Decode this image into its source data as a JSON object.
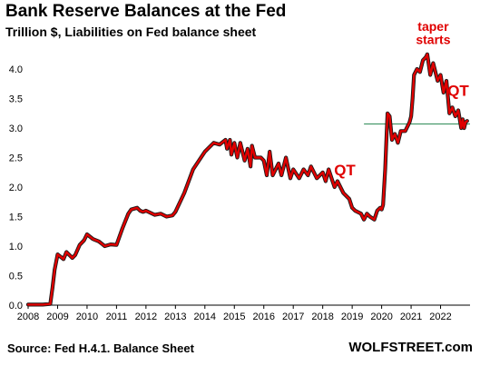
{
  "chart_data": {
    "type": "line",
    "title": "Bank Reserve Balances at the Fed",
    "subtitle": "Trillion $, Liabilities on Fed balance sheet",
    "xlabel": "",
    "ylabel": "",
    "xlim": [
      2008,
      2023
    ],
    "ylim": [
      0,
      4.4
    ],
    "x_ticks": [
      "2008",
      "2009",
      "2010",
      "2011",
      "2012",
      "2013",
      "2014",
      "2015",
      "2016",
      "2017",
      "2018",
      "2019",
      "2020",
      "2021",
      "2022"
    ],
    "y_ticks": [
      "0.0",
      "0.5",
      "1.0",
      "1.5",
      "2.0",
      "2.5",
      "3.0",
      "3.5",
      "4.0"
    ],
    "grid": false,
    "series": [
      {
        "color": "#e00000",
        "x": [
          2008.0,
          2008.5,
          2008.75,
          2008.83,
          2008.9,
          2009.0,
          2009.2,
          2009.3,
          2009.5,
          2009.6,
          2009.75,
          2009.9,
          2010.0,
          2010.2,
          2010.4,
          2010.5,
          2010.6,
          2010.8,
          2011.0,
          2011.2,
          2011.4,
          2011.5,
          2011.7,
          2011.8,
          2011.9,
          2012.0,
          2012.3,
          2012.5,
          2012.7,
          2012.9,
          2013.0,
          2013.3,
          2013.6,
          2014.0,
          2014.3,
          2014.5,
          2014.7,
          2014.75,
          2014.85,
          2014.9,
          2015.0,
          2015.1,
          2015.2,
          2015.35,
          2015.45,
          2015.55,
          2015.6,
          2015.7,
          2015.9,
          2016.0,
          2016.1,
          2016.2,
          2016.3,
          2016.5,
          2016.6,
          2016.75,
          2016.9,
          2017.0,
          2017.2,
          2017.35,
          2017.5,
          2017.6,
          2017.8,
          2018.0,
          2018.1,
          2018.2,
          2018.3,
          2018.4,
          2018.5,
          2018.7,
          2018.9,
          2019.0,
          2019.1,
          2019.3,
          2019.4,
          2019.5,
          2019.6,
          2019.75,
          2019.85,
          2019.95,
          2020.0,
          2020.05,
          2020.12,
          2020.17,
          2020.2,
          2020.27,
          2020.35,
          2020.45,
          2020.55,
          2020.65,
          2020.8,
          2020.95,
          2021.0,
          2021.05,
          2021.1,
          2021.2,
          2021.3,
          2021.4,
          2021.5,
          2021.55,
          2021.65,
          2021.75,
          2021.9,
          2022.0,
          2022.1,
          2022.2,
          2022.3,
          2022.4,
          2022.5,
          2022.6,
          2022.7,
          2022.75,
          2022.8,
          2022.85,
          2022.9
        ],
        "y": [
          0.01,
          0.01,
          0.02,
          0.3,
          0.6,
          0.86,
          0.78,
          0.9,
          0.8,
          0.85,
          1.02,
          1.1,
          1.2,
          1.12,
          1.08,
          1.04,
          1.0,
          1.03,
          1.02,
          1.3,
          1.55,
          1.62,
          1.65,
          1.6,
          1.58,
          1.6,
          1.53,
          1.55,
          1.5,
          1.52,
          1.58,
          1.9,
          2.3,
          2.6,
          2.75,
          2.72,
          2.8,
          2.65,
          2.8,
          2.55,
          2.75,
          2.5,
          2.75,
          2.45,
          2.65,
          2.35,
          2.7,
          2.5,
          2.5,
          2.45,
          2.2,
          2.6,
          2.2,
          2.4,
          2.2,
          2.5,
          2.15,
          2.3,
          2.15,
          2.3,
          2.2,
          2.35,
          2.15,
          2.25,
          2.1,
          2.3,
          2.15,
          2.0,
          2.1,
          1.9,
          1.8,
          1.65,
          1.6,
          1.55,
          1.45,
          1.55,
          1.5,
          1.45,
          1.6,
          1.65,
          1.62,
          1.7,
          2.3,
          2.9,
          3.25,
          3.2,
          2.8,
          2.9,
          2.75,
          2.95,
          2.95,
          3.1,
          3.2,
          3.5,
          3.9,
          4.0,
          3.95,
          4.15,
          4.2,
          4.25,
          3.9,
          4.1,
          3.8,
          3.9,
          3.6,
          3.8,
          3.25,
          3.35,
          3.2,
          3.3,
          3.0,
          3.15,
          3.0,
          3.1,
          3.12
        ]
      }
    ],
    "reference_line": {
      "y": 3.07,
      "x_start": 2019.4,
      "x_end": 2023.0,
      "color": "#2e8b57"
    },
    "annotations": [
      {
        "text": "QT",
        "x": 2018.75,
        "y": 2.2,
        "size": 17
      },
      {
        "text": "taper",
        "x": 2021.75,
        "y": 4.65,
        "size": 14
      },
      {
        "text": "starts",
        "x": 2021.75,
        "y": 4.42,
        "size": 14
      },
      {
        "text": "QT",
        "x": 2022.6,
        "y": 3.55,
        "size": 17
      }
    ]
  },
  "footer": {
    "source": "Source: Fed H.4.1. Balance Sheet",
    "brand": "WOLFSTREET.com"
  }
}
